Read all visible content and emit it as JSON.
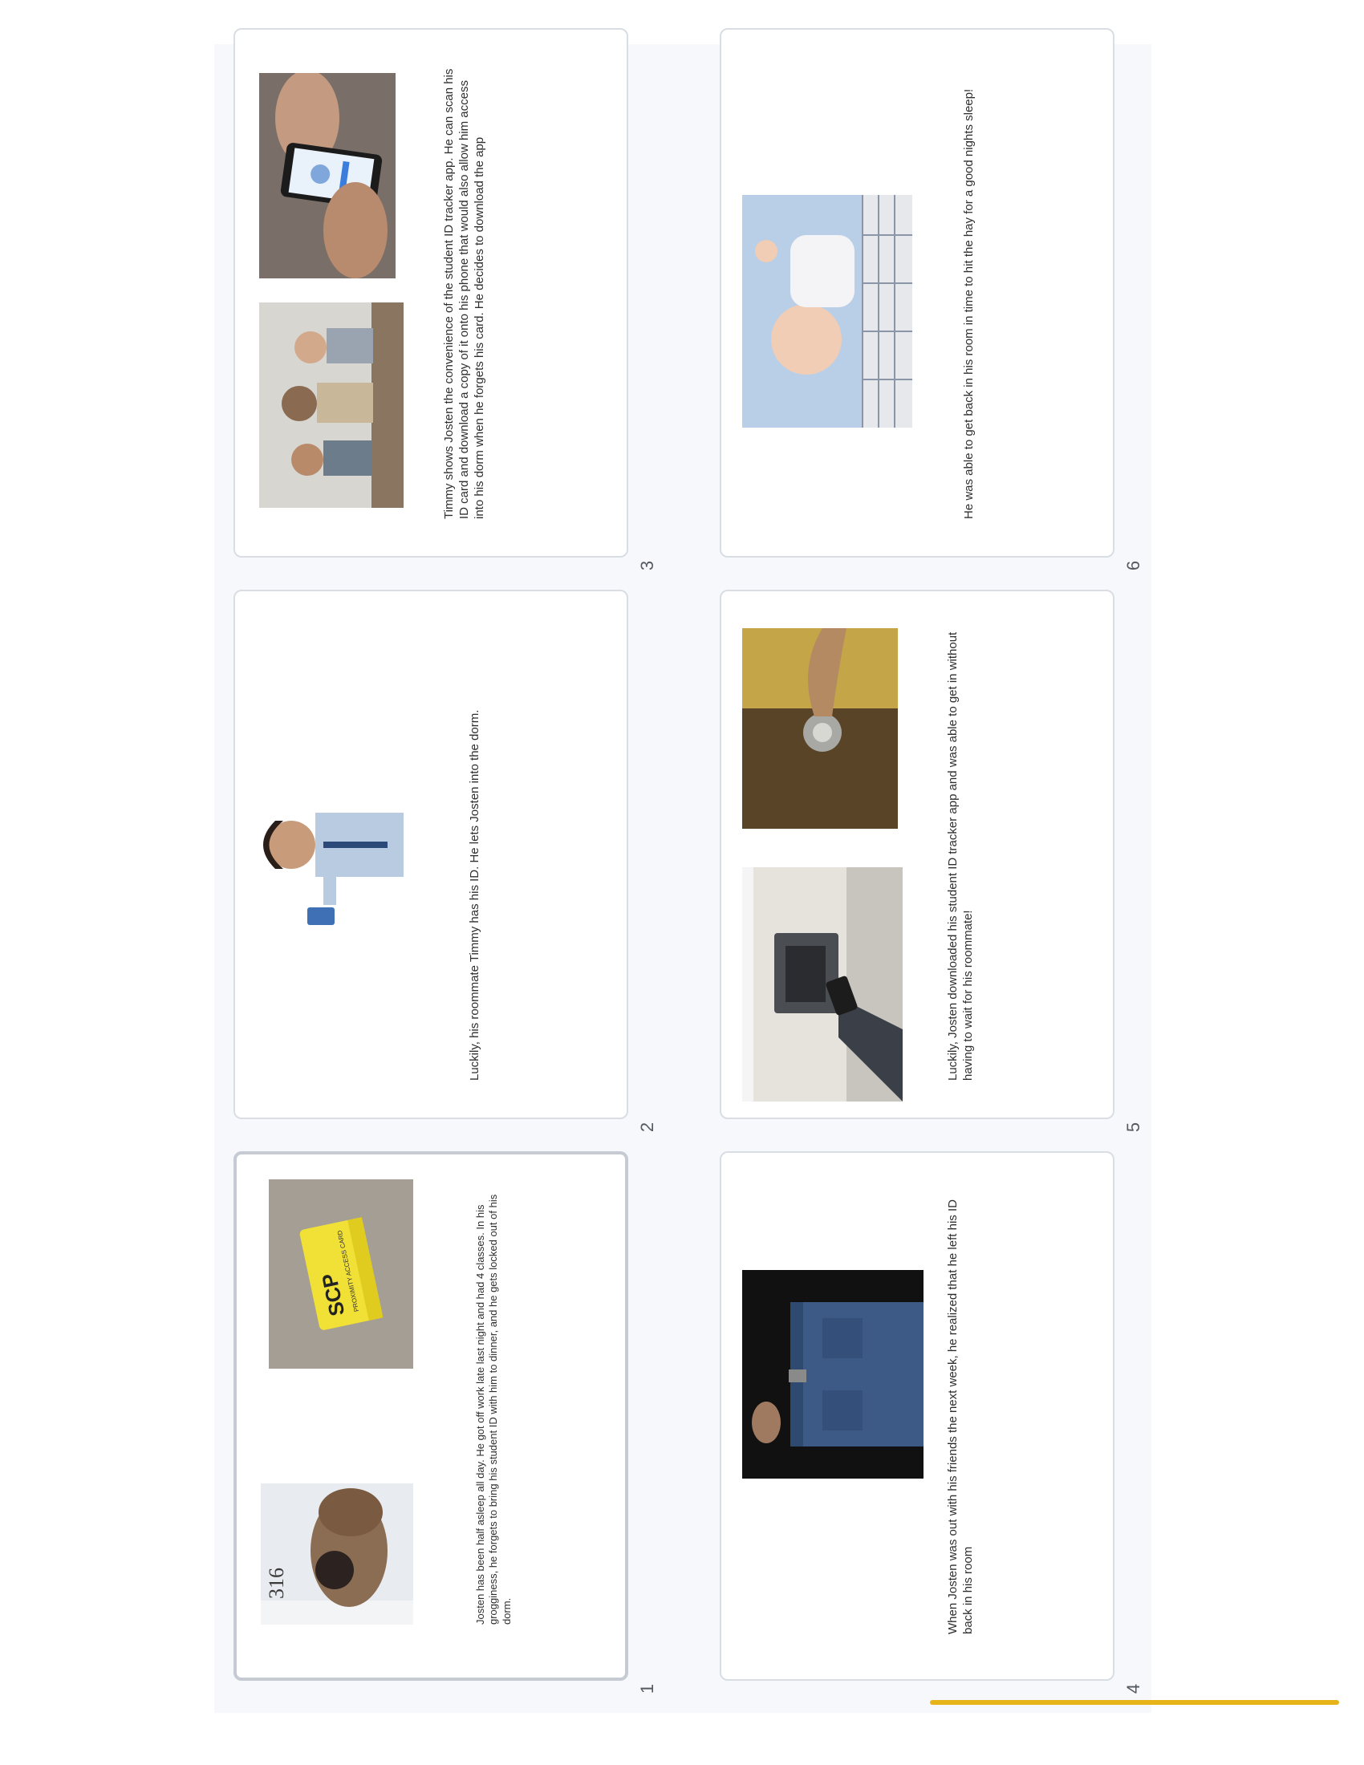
{
  "slides": [
    {
      "number": "1",
      "caption": "Josten has been half asleep all day. He got off work late last night and had 4 classes. In his grogginess, he forgets to bring his student ID with him to dinner, and he gets locked out of his dorm.",
      "photo_text": "316",
      "card_text": "SCP",
      "card_subtitle": "PROXIMITY ACCESS CARD"
    },
    {
      "number": "2",
      "caption": "Luckily, his roommate Timmy has his ID. He lets Josten into the dorm."
    },
    {
      "number": "3",
      "caption": "Timmy shows Josten the convenience of the student ID tracker app. He can scan his ID card and download a copy of it onto his phone that would also allow him access into his dorm when he forgets his card. He decides to download the app"
    },
    {
      "number": "4",
      "caption": "When Josten was out with his friends the next week, he realized that he left his ID back in his room"
    },
    {
      "number": "5",
      "caption": "Luckily, Josten downloaded his student ID tracker app and was able to get in without having to wait for his roommate!"
    },
    {
      "number": "6",
      "caption": "He was able to get back in his room in time to hit the hay for a good nights sleep!"
    }
  ],
  "colors": {
    "selection": "#e6b419",
    "panel": "#f7f8fb",
    "border": "#d9dde4"
  }
}
